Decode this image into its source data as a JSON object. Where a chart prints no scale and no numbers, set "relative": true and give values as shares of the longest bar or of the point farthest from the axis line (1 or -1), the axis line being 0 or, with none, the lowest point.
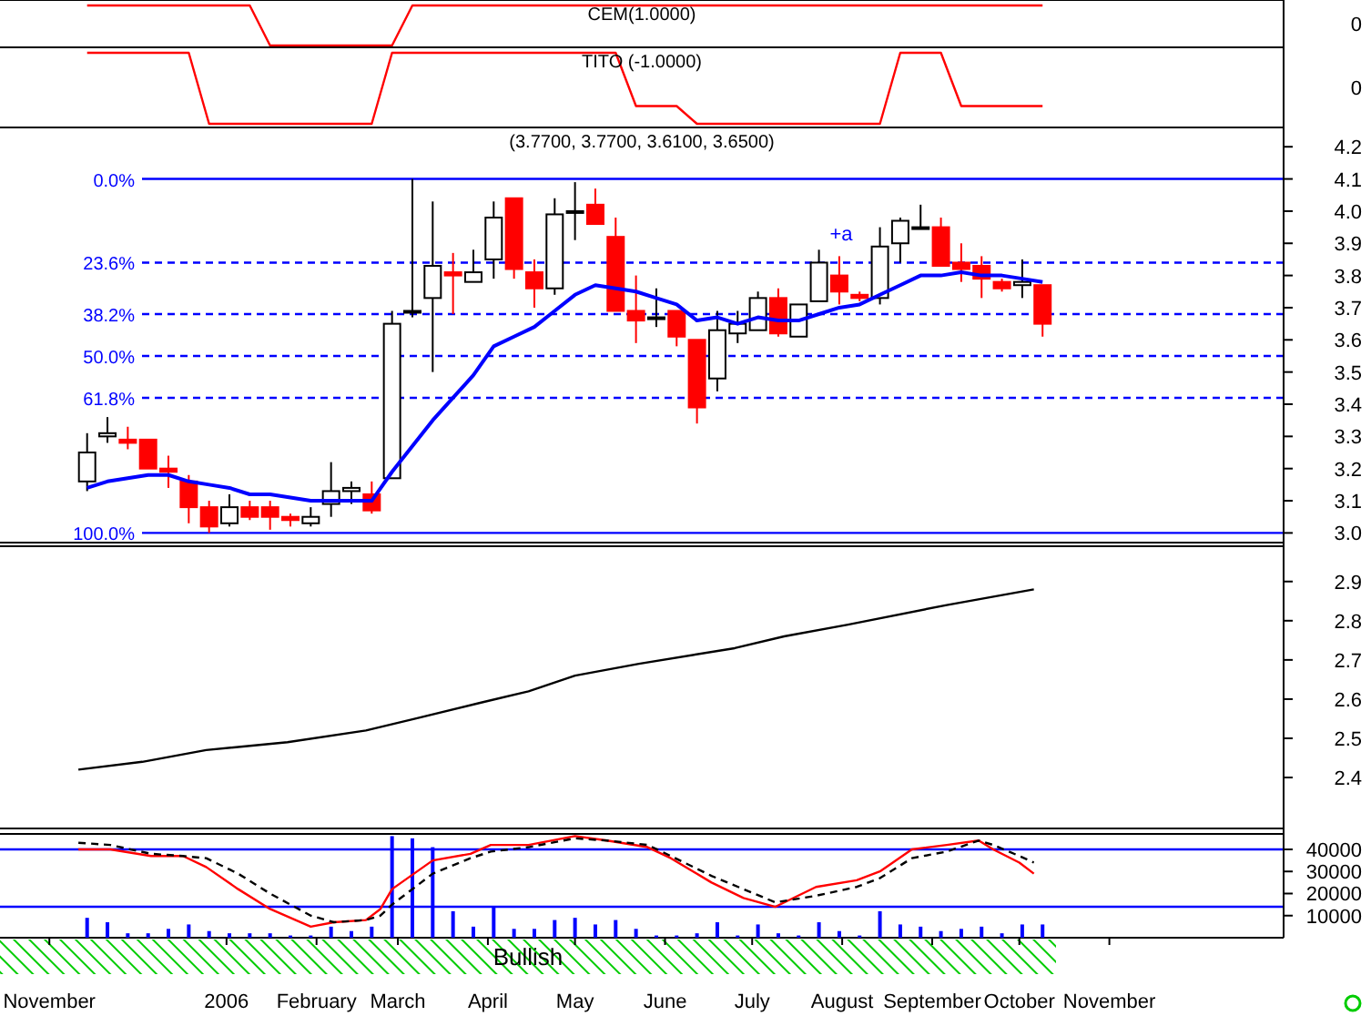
{
  "chart_data": [
    {
      "type": "line",
      "title": "CEM(1.0000)",
      "xlim": [
        "2005-10-15",
        "2006-12-31"
      ],
      "relative": true,
      "annotations": [
        "0"
      ],
      "x": [
        "2005-11-14",
        "2005-11-21",
        "2005-11-28",
        "2005-12-05",
        "2005-12-12",
        "2005-12-19",
        "2005-12-26",
        "2006-01-02",
        "2006-01-09",
        "2006-01-16",
        "2006-01-23",
        "2006-01-30",
        "2006-02-06",
        "2006-02-13",
        "2006-02-20",
        "2006-02-27",
        "2006-03-06",
        "2006-03-13",
        "2006-03-20",
        "2006-03-27",
        "2006-04-03",
        "2006-04-10",
        "2006-04-17",
        "2006-04-24",
        "2006-05-01",
        "2006-05-08",
        "2006-05-15",
        "2006-05-22",
        "2006-05-29",
        "2006-06-05",
        "2006-06-12",
        "2006-06-19",
        "2006-06-26",
        "2006-07-03",
        "2006-07-10",
        "2006-07-17",
        "2006-07-24",
        "2006-07-31",
        "2006-08-07",
        "2006-08-14",
        "2006-08-21",
        "2006-08-28",
        "2006-09-04",
        "2006-09-11",
        "2006-09-18",
        "2006-09-25",
        "2006-10-02",
        "2006-10-09"
      ],
      "series": [
        {
          "color": "#ff0000",
          "values": [
            1,
            1,
            1,
            1,
            1,
            1,
            1,
            1,
            1,
            0,
            0,
            0,
            0,
            0,
            0,
            0,
            1,
            1,
            1,
            1,
            1,
            1,
            1,
            1,
            1,
            1,
            1,
            1,
            1,
            1,
            1,
            1,
            1,
            1,
            1,
            1,
            1,
            1,
            1,
            1,
            1,
            1,
            1,
            1,
            1,
            1,
            1,
            1
          ]
        }
      ]
    },
    {
      "type": "line",
      "title": "TITO (-1.0000)",
      "xlim": [
        "2005-10-15",
        "2006-12-31"
      ],
      "relative": true,
      "annotations": [
        "0"
      ],
      "x": [
        "2005-11-14",
        "2005-11-21",
        "2005-11-28",
        "2005-12-05",
        "2005-12-12",
        "2005-12-19",
        "2005-12-26",
        "2006-01-02",
        "2006-01-09",
        "2006-01-16",
        "2006-01-23",
        "2006-01-30",
        "2006-02-06",
        "2006-02-13",
        "2006-02-20",
        "2006-02-27",
        "2006-03-06",
        "2006-03-13",
        "2006-03-20",
        "2006-03-27",
        "2006-04-03",
        "2006-04-10",
        "2006-04-17",
        "2006-04-24",
        "2006-05-01",
        "2006-05-08",
        "2006-05-15",
        "2006-05-22",
        "2006-05-29",
        "2006-06-05",
        "2006-06-12",
        "2006-06-19",
        "2006-06-26",
        "2006-07-03",
        "2006-07-10",
        "2006-07-17",
        "2006-07-24",
        "2006-07-31",
        "2006-08-07",
        "2006-08-14",
        "2006-08-21",
        "2006-08-28",
        "2006-09-04",
        "2006-09-11",
        "2006-09-18",
        "2006-09-25",
        "2006-10-02",
        "2006-10-09"
      ],
      "series": [
        {
          "color": "#ff0000",
          "values": [
            1,
            1,
            1,
            1,
            1,
            1,
            0,
            0,
            0,
            0,
            0,
            0,
            0,
            0,
            0,
            1,
            1,
            1,
            1,
            1,
            1,
            1,
            1,
            1,
            1,
            1,
            1,
            0.25,
            0.25,
            0.25,
            0,
            0,
            0,
            0,
            0,
            0,
            0,
            0,
            0,
            0,
            1,
            1,
            1,
            0.25,
            0.25,
            0.25,
            0.25,
            0.25
          ]
        }
      ]
    },
    {
      "type": "candlestick",
      "title": "(3.7700, 3.7700, 3.6100, 3.6500)",
      "xlim": [
        "2005-10-15",
        "2006-12-31"
      ],
      "ylim": [
        2.97,
        4.26
      ],
      "yticks": [
        {
          "value": 3,
          "label": "3.0"
        },
        3.1,
        3.2,
        3.3,
        3.4,
        3.5,
        3.6,
        3.7,
        3.8,
        3.9,
        {
          "value": 4,
          "label": "4.0"
        },
        4.1,
        4.2
      ],
      "tick_labels": "y",
      "x": [
        "2005-11-14",
        "2005-11-21",
        "2005-11-28",
        "2005-12-05",
        "2005-12-12",
        "2005-12-19",
        "2005-12-26",
        "2006-01-02",
        "2006-01-09",
        "2006-01-16",
        "2006-01-23",
        "2006-01-30",
        "2006-02-06",
        "2006-02-13",
        "2006-02-20",
        "2006-02-27",
        "2006-03-06",
        "2006-03-13",
        "2006-03-20",
        "2006-03-27",
        "2006-04-03",
        "2006-04-10",
        "2006-04-17",
        "2006-04-24",
        "2006-05-01",
        "2006-05-08",
        "2006-05-15",
        "2006-05-22",
        "2006-05-29",
        "2006-06-05",
        "2006-06-12",
        "2006-06-19",
        "2006-06-26",
        "2006-07-03",
        "2006-07-10",
        "2006-07-17",
        "2006-07-24",
        "2006-07-31",
        "2006-08-07",
        "2006-08-14",
        "2006-08-21",
        "2006-08-28",
        "2006-09-04",
        "2006-09-11",
        "2006-09-18",
        "2006-09-25",
        "2006-10-02",
        "2006-10-09"
      ],
      "ohlc": [
        [
          3.16,
          3.31,
          3.13,
          3.25
        ],
        [
          3.3,
          3.36,
          3.28,
          3.31
        ],
        [
          3.29,
          3.33,
          3.26,
          3.28
        ],
        [
          3.29,
          3.29,
          3.2,
          3.2
        ],
        [
          3.2,
          3.24,
          3.14,
          3.19
        ],
        [
          3.16,
          3.18,
          3.03,
          3.08
        ],
        [
          3.08,
          3.1,
          3.0,
          3.02
        ],
        [
          3.03,
          3.12,
          3.02,
          3.08
        ],
        [
          3.08,
          3.1,
          3.04,
          3.05
        ],
        [
          3.08,
          3.1,
          3.01,
          3.05
        ],
        [
          3.05,
          3.06,
          3.02,
          3.04
        ],
        [
          3.03,
          3.08,
          3.02,
          3.05
        ],
        [
          3.09,
          3.22,
          3.05,
          3.13
        ],
        [
          3.13,
          3.16,
          3.09,
          3.14
        ],
        [
          3.12,
          3.16,
          3.06,
          3.07
        ],
        [
          3.17,
          3.69,
          3.17,
          3.65
        ],
        [
          3.69,
          4.1,
          3.67,
          3.69
        ],
        [
          3.73,
          4.03,
          3.5,
          3.83
        ],
        [
          3.81,
          3.87,
          3.68,
          3.8
        ],
        [
          3.78,
          3.88,
          3.78,
          3.81
        ],
        [
          3.85,
          4.03,
          3.79,
          3.98
        ],
        [
          4.04,
          4.04,
          3.79,
          3.82
        ],
        [
          3.81,
          3.85,
          3.7,
          3.76
        ],
        [
          3.76,
          4.04,
          3.74,
          3.99
        ],
        [
          4.0,
          4.09,
          3.91,
          4.0
        ],
        [
          4.02,
          4.07,
          3.96,
          3.96
        ],
        [
          3.92,
          3.98,
          3.69,
          3.69
        ],
        [
          3.69,
          3.8,
          3.59,
          3.66
        ],
        [
          3.67,
          3.76,
          3.64,
          3.67
        ],
        [
          3.69,
          3.69,
          3.58,
          3.61
        ],
        [
          3.6,
          3.6,
          3.34,
          3.39
        ],
        [
          3.48,
          3.69,
          3.44,
          3.63
        ],
        [
          3.62,
          3.69,
          3.59,
          3.65
        ],
        [
          3.63,
          3.75,
          3.63,
          3.73
        ],
        [
          3.73,
          3.76,
          3.61,
          3.62
        ],
        [
          3.61,
          3.71,
          3.61,
          3.71
        ],
        [
          3.72,
          3.88,
          3.72,
          3.84
        ],
        [
          3.8,
          3.86,
          3.71,
          3.75
        ],
        [
          3.74,
          3.75,
          3.72,
          3.73
        ],
        [
          3.73,
          3.95,
          3.71,
          3.89
        ],
        [
          3.9,
          3.98,
          3.84,
          3.97
        ],
        [
          3.95,
          4.02,
          3.95,
          3.95
        ],
        [
          3.95,
          3.98,
          3.83,
          3.83
        ],
        [
          3.84,
          3.9,
          3.78,
          3.82
        ],
        [
          3.83,
          3.86,
          3.73,
          3.79
        ],
        [
          3.78,
          3.79,
          3.75,
          3.76
        ],
        [
          3.77,
          3.85,
          3.73,
          3.78
        ],
        [
          3.77,
          3.77,
          3.61,
          3.65
        ]
      ],
      "series": [
        {
          "type": "line",
          "color": "#0000ff",
          "values": [
            3.14,
            3.16,
            3.17,
            3.18,
            3.18,
            3.16,
            3.15,
            3.14,
            3.12,
            3.12,
            3.11,
            3.1,
            3.1,
            3.1,
            3.1,
            3.19,
            3.27,
            3.35,
            3.42,
            3.49,
            3.58,
            3.61,
            3.64,
            3.69,
            3.74,
            3.77,
            3.76,
            3.75,
            3.73,
            3.71,
            3.66,
            3.67,
            3.65,
            3.67,
            3.66,
            3.66,
            3.68,
            3.7,
            3.71,
            3.74,
            3.77,
            3.8,
            3.8,
            3.81,
            3.8,
            3.8,
            3.79,
            3.78
          ]
        }
      ],
      "ref_lines": [
        {
          "axis": "y",
          "value": 4.1,
          "color": "#0000ff",
          "line_style": "solid"
        },
        {
          "axis": "y",
          "value": 3.84,
          "color": "#0000ff",
          "line_style": "dashed"
        },
        {
          "axis": "y",
          "value": 3.68,
          "color": "#0000ff",
          "line_style": "dashed"
        },
        {
          "axis": "y",
          "value": 3.55,
          "color": "#0000ff",
          "line_style": "dashed"
        },
        {
          "axis": "y",
          "value": 3.42,
          "color": "#0000ff",
          "line_style": "dashed"
        },
        {
          "axis": "y",
          "value": 3.0,
          "color": "#0000ff",
          "line_style": "solid"
        }
      ],
      "annotations": [
        "+a",
        "0.0%",
        "23.6%",
        "38.2%",
        "50.0%",
        "61.8%",
        "100.0%"
      ]
    },
    {
      "type": "line",
      "xlim": [
        "2005-10-15",
        "2006-12-31"
      ],
      "ylim": [
        2.27,
        2.99
      ],
      "yticks": [
        2.4,
        2.5,
        2.6,
        2.7,
        2.8,
        2.9
      ],
      "tick_labels": "y",
      "x": [
        "2005-11-11",
        "2005-12-03",
        "2005-12-25",
        "2006-01-22",
        "2006-02-18",
        "2006-03-07",
        "2006-03-29",
        "2006-04-15",
        "2006-05-01",
        "2006-05-23",
        "2006-06-25",
        "2006-07-12",
        "2006-08-03",
        "2006-09-06",
        "2006-10-06"
      ],
      "series": [
        {
          "color": "#000000",
          "values": [
            2.42,
            2.44,
            2.47,
            2.49,
            2.52,
            2.55,
            2.59,
            2.62,
            2.66,
            2.69,
            2.73,
            2.76,
            2.79,
            2.84,
            2.88
          ]
        }
      ]
    },
    {
      "type": "bar",
      "xlim": [
        "2005-10-15",
        "2006-12-31"
      ],
      "ylim": [
        0,
        47000
      ],
      "yticks": [
        10000,
        20000,
        30000,
        40000
      ],
      "xticks": [
        {
          "value": "2005-11-01",
          "label": "November"
        },
        {
          "value": "2006-01-01",
          "label": "2006"
        },
        {
          "value": "2006-02-01",
          "label": "February"
        },
        {
          "value": "2006-03-01",
          "label": "March"
        },
        {
          "value": "2006-04-01",
          "label": "April"
        },
        {
          "value": "2006-05-01",
          "label": "May"
        },
        {
          "value": "2006-06-01",
          "label": "June"
        },
        {
          "value": "2006-07-01",
          "label": "July"
        },
        {
          "value": "2006-08-01",
          "label": "August"
        },
        {
          "value": "2006-09-01",
          "label": "September"
        },
        {
          "value": "2006-10-01",
          "label": "October"
        },
        {
          "value": "2006-11-01",
          "label": "November"
        }
      ],
      "x": [
        "2005-11-14",
        "2005-11-21",
        "2005-11-28",
        "2005-12-05",
        "2005-12-12",
        "2005-12-19",
        "2005-12-26",
        "2006-01-02",
        "2006-01-09",
        "2006-01-16",
        "2006-01-23",
        "2006-01-30",
        "2006-02-06",
        "2006-02-13",
        "2006-02-20",
        "2006-02-27",
        "2006-03-06",
        "2006-03-13",
        "2006-03-20",
        "2006-03-27",
        "2006-04-03",
        "2006-04-10",
        "2006-04-17",
        "2006-04-24",
        "2006-05-01",
        "2006-05-08",
        "2006-05-15",
        "2006-05-22",
        "2006-05-29",
        "2006-06-05",
        "2006-06-12",
        "2006-06-19",
        "2006-06-26",
        "2006-07-03",
        "2006-07-10",
        "2006-07-17",
        "2006-07-24",
        "2006-07-31",
        "2006-08-07",
        "2006-08-14",
        "2006-08-21",
        "2006-08-28",
        "2006-09-04",
        "2006-09-11",
        "2006-09-18",
        "2006-09-25",
        "2006-10-02",
        "2006-10-09"
      ],
      "series": [
        {
          "type": "bar",
          "color": "#0000ff",
          "values": [
            9000,
            7000,
            2000,
            2000,
            4000,
            6000,
            3000,
            2000,
            2000,
            2000,
            1000,
            1000,
            5000,
            3000,
            5000,
            46000,
            45000,
            41000,
            12000,
            5000,
            14000,
            4000,
            4000,
            8000,
            9000,
            6000,
            8000,
            4000,
            1000,
            1000,
            2000,
            7000,
            1000,
            6000,
            2000,
            1000,
            7000,
            3000,
            1000,
            12000,
            6000,
            5000,
            3000,
            4000,
            5000,
            2000,
            6000,
            6000
          ]
        },
        {
          "type": "line",
          "color": "#ff0000",
          "x": [
            "2005-11-11",
            "2005-11-22",
            "2005-12-06",
            "2005-12-17",
            "2005-12-25",
            "2006-01-05",
            "2006-01-16",
            "2006-01-30",
            "2006-02-07",
            "2006-02-18",
            "2006-02-23",
            "2006-02-27",
            "2006-03-13",
            "2006-03-26",
            "2006-04-02",
            "2006-04-15",
            "2006-05-01",
            "2006-05-12",
            "2006-05-26",
            "2006-06-03",
            "2006-06-17",
            "2006-06-28",
            "2006-07-09",
            "2006-07-23",
            "2006-08-06",
            "2006-08-14",
            "2006-08-25",
            "2006-09-06",
            "2006-09-17",
            "2006-09-22",
            "2006-10-01",
            "2006-10-06"
          ],
          "values": [
            40000,
            40000,
            37000,
            37000,
            32000,
            22000,
            13000,
            5000,
            7000,
            8000,
            13000,
            22000,
            35000,
            38000,
            42000,
            42000,
            46000,
            44000,
            41000,
            36000,
            25000,
            18000,
            14000,
            23000,
            26000,
            30000,
            40000,
            42000,
            44000,
            40000,
            34000,
            29000
          ]
        },
        {
          "type": "line",
          "color": "#000000",
          "line_style": "dashed",
          "x": [
            "2005-11-11",
            "2005-11-22",
            "2005-12-06",
            "2005-12-17",
            "2005-12-25",
            "2006-01-05",
            "2006-01-16",
            "2006-01-30",
            "2006-02-07",
            "2006-02-18",
            "2006-02-23",
            "2006-02-27",
            "2006-03-13",
            "2006-03-26",
            "2006-04-02",
            "2006-04-15",
            "2006-05-01",
            "2006-05-12",
            "2006-05-26",
            "2006-06-03",
            "2006-06-17",
            "2006-06-28",
            "2006-07-09",
            "2006-07-23",
            "2006-08-06",
            "2006-08-14",
            "2006-08-25",
            "2006-09-06",
            "2006-09-17",
            "2006-09-22",
            "2006-10-01",
            "2006-10-06"
          ],
          "values": [
            43000,
            42000,
            38000,
            37000,
            36000,
            29000,
            20000,
            10000,
            7000,
            8000,
            10000,
            15000,
            29000,
            36000,
            39000,
            41000,
            45000,
            44000,
            42000,
            37000,
            28000,
            22000,
            16000,
            19000,
            23000,
            27000,
            36000,
            39000,
            44000,
            42000,
            37000,
            34000
          ]
        }
      ],
      "ref_lines": [
        {
          "axis": "y",
          "value": 40000,
          "color": "#0000ff"
        },
        {
          "axis": "y",
          "value": 14000,
          "color": "#0000ff"
        }
      ],
      "annotations": [
        "Bullish"
      ]
    }
  ]
}
